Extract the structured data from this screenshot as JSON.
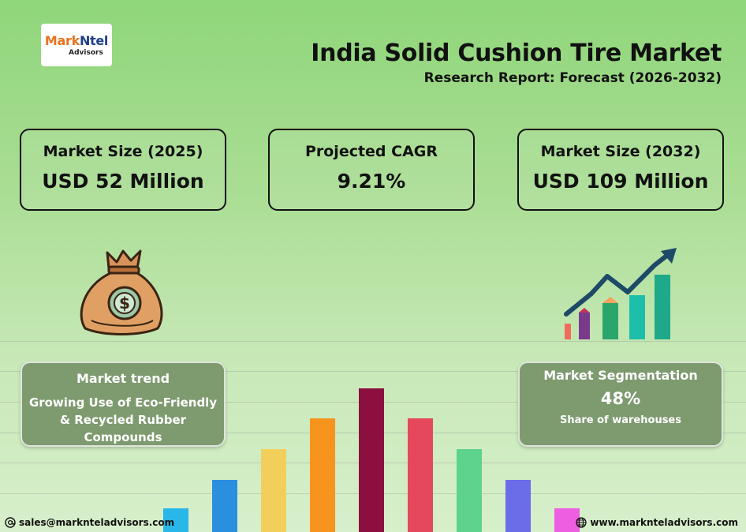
{
  "logo": {
    "main_part1": "Mark",
    "main_part2": "Ntel",
    "sub": "Advisors"
  },
  "header": {
    "title": "India Solid Cushion Tire Market",
    "subtitle": "Research Report: Forecast (2026-2032)"
  },
  "stats": [
    {
      "label": "Market Size (2025)",
      "value": "USD 52 Million"
    },
    {
      "label": "Projected CAGR",
      "value": "9.21%"
    },
    {
      "label": "Market Size (2032)",
      "value": "USD 109 Million"
    }
  ],
  "trend": {
    "heading": "Market trend",
    "text": "Growing Use of Eco-Friendly & Recycled Rubber Compounds"
  },
  "segmentation": {
    "heading": "Market Segmentation",
    "value": "48%",
    "sub": "Share of warehouses"
  },
  "decor_bars": {
    "values": [
      30,
      66,
      105,
      144,
      182,
      144,
      105,
      66,
      30
    ],
    "colors": [
      "#29b6e8",
      "#2b8fe0",
      "#f2cf5b",
      "#f7941d",
      "#8b1040",
      "#e5485c",
      "#5dd38d",
      "#6a6ce8",
      "#ee5ee0"
    ]
  },
  "icons": {
    "money_bag": "money-bag-icon",
    "growth": "growth-chart-icon",
    "email": "email-icon",
    "globe": "globe-icon"
  },
  "footer": {
    "email": "sales@marknteladvisors.com",
    "website": "www.marknteladvisors.com"
  }
}
